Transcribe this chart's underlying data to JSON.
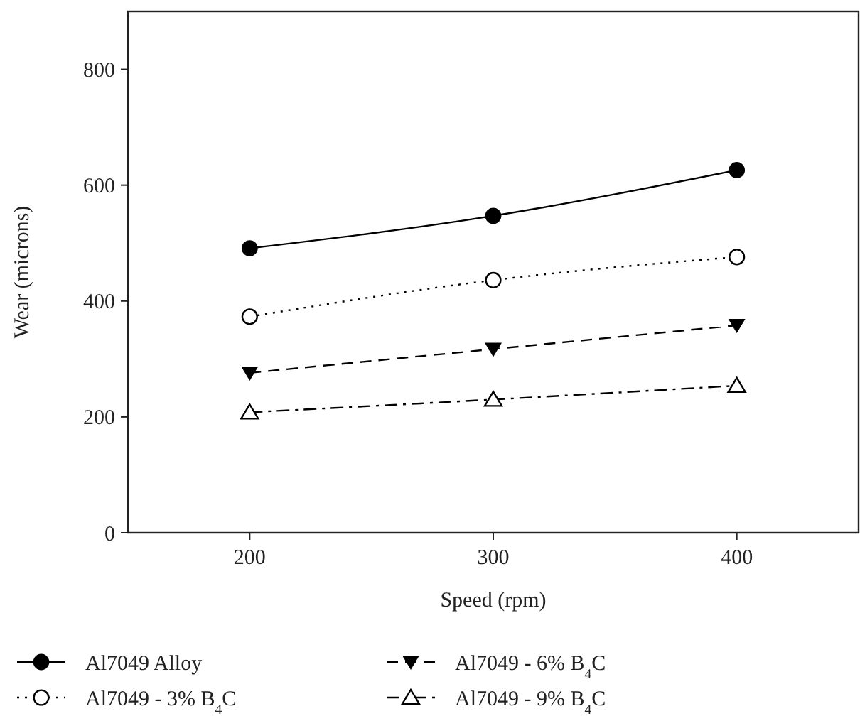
{
  "chart_data": {
    "type": "line",
    "xlabel": "Speed (rpm)",
    "ylabel": "Wear (microns)",
    "x": [
      200,
      300,
      400
    ],
    "xlim": [
      150,
      450
    ],
    "xticks": [
      200,
      300,
      400
    ],
    "ylim": [
      0,
      900
    ],
    "yticks": [
      0,
      200,
      400,
      600,
      800
    ],
    "grid": false,
    "legend": "bottom",
    "series": [
      {
        "name": "Al7049 Alloy",
        "color": "#000000",
        "marker": "circle",
        "line_style": "solid",
        "values": [
          491,
          547,
          626
        ]
      },
      {
        "name": "Al7049 - 3% B$_{4}$C",
        "color": "#000000",
        "marker": "circle-open",
        "line_style": "dotted",
        "values": [
          373,
          436,
          476
        ]
      },
      {
        "name": "Al7049 - 6% B$_{4}$C",
        "color": "#000000",
        "marker": "triangle-down",
        "line_style": "dashed",
        "values": [
          276,
          317,
          358
        ]
      },
      {
        "name": "Al7049 - 9% B$_{4}$C",
        "color": "#000000",
        "marker": "triangle-open",
        "line_style": "dashdot",
        "values": [
          208,
          230,
          254
        ]
      }
    ]
  }
}
